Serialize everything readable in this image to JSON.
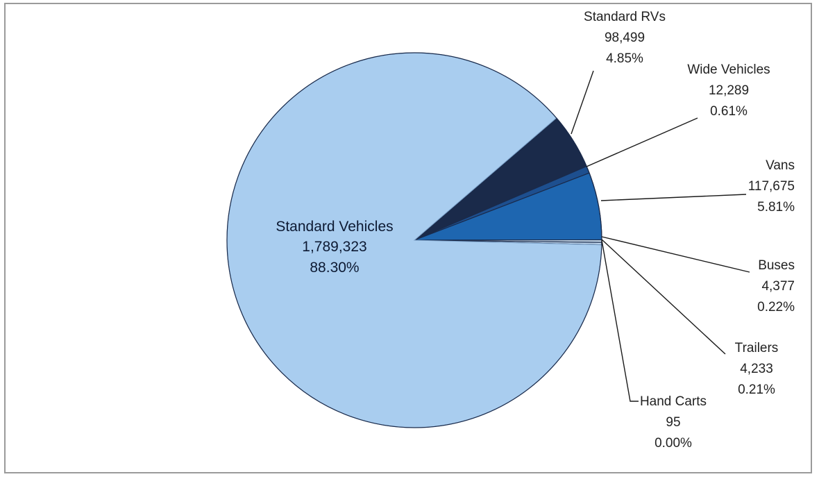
{
  "chart_data": {
    "type": "pie",
    "title": "",
    "slices": [
      {
        "label": "Standard Vehicles",
        "count": "1,789,323",
        "percent": "88.30%",
        "value": 1789323,
        "color": "#a9cdef"
      },
      {
        "label": "Standard RVs",
        "count": "98,499",
        "percent": "4.85%",
        "value": 98499,
        "color": "#1a2a4a"
      },
      {
        "label": "Wide Vehicles",
        "count": "12,289",
        "percent": "0.61%",
        "value": 12289,
        "color": "#1d4f8f"
      },
      {
        "label": "Vans",
        "count": "117,675",
        "percent": "5.81%",
        "value": 117675,
        "color": "#1e66b0"
      },
      {
        "label": "Buses",
        "count": "4,377",
        "percent": "0.22%",
        "value": 4377,
        "color": "#c8dcef"
      },
      {
        "label": "Trailers",
        "count": "4,233",
        "percent": "0.21%",
        "value": 4233,
        "color": "#bcd4ec"
      },
      {
        "label": "Hand Carts",
        "count": "95",
        "percent": "0.00%",
        "value": 95,
        "color": "#a9cdef"
      }
    ],
    "legend": "none"
  }
}
